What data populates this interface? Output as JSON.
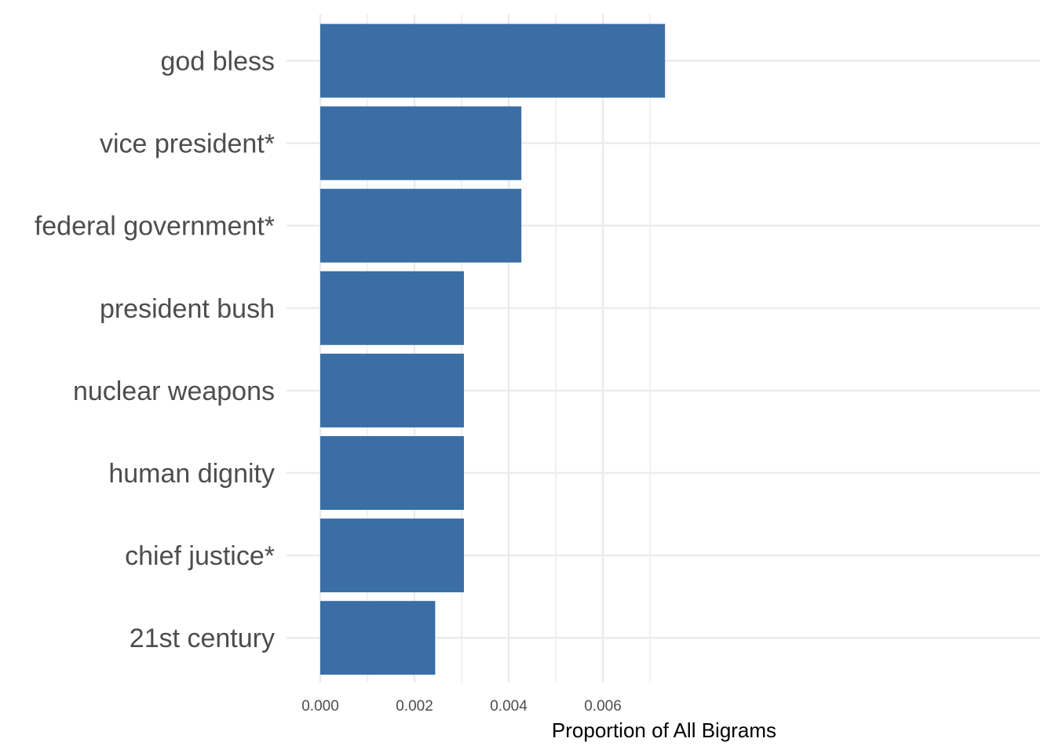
{
  "chart_data": {
    "type": "bar",
    "orientation": "horizontal",
    "categories": [
      "god bless",
      "vice president*",
      "federal government*",
      "president bush",
      "nuclear weapons",
      "human dignity",
      "chief justice*",
      "21st century"
    ],
    "values": [
      0.00732,
      0.00427,
      0.00427,
      0.00305,
      0.00305,
      0.00305,
      0.00305,
      0.00244
    ],
    "xlabel": "Proportion of All Bigrams",
    "ylabel": "",
    "xlim": [
      0,
      0.0074
    ],
    "xticks": [
      0,
      0.002,
      0.004,
      0.006
    ],
    "xtick_labels": [
      "0.000",
      "0.002",
      "0.004",
      "0.006"
    ],
    "grid": true,
    "bar_color": "#3a6ea5",
    "grid_color": "#ebebeb"
  }
}
